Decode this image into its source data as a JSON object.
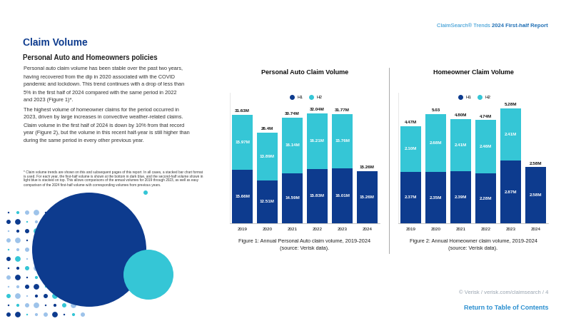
{
  "header": {
    "series_name": "ClaimSearch® Trends",
    "report": "2024 First-half Report"
  },
  "title": "Claim Volume",
  "subtitle": "Personal Auto and Homeowners policies",
  "paragraphs": [
    [
      "Personal auto claim volume has been stable over the past two years,",
      "having recovered from the dip in 2020 associated with the COVID",
      "pandemic and lockdown. This trend continues with a drop of less than",
      "5% in the first half of 2024 compared with the same period in 2022",
      "and 2023 (Figure 1)*."
    ],
    [
      "The highest volume of homeowner claims for the period occurred in",
      "2023, driven by large increases in convective weather-related claims.",
      "Claim volume in the first half of 2024 is down by 10% from that record",
      "year (Figure 2), but the volume in this recent half-year is still higher than",
      "during the same period in every other previous year."
    ]
  ],
  "footnote": [
    "* Claim volume trends are shown on this and subsequent pages of this report. In all cases, a stacked bar chart format",
    "is used. For each year, the first-half volume is shown at the bottom in dark blue, and the second-half volume shown in",
    "light blue is stacked on top. This allows comparisons of the annual volumes for 2019 through 2023, as well as easy",
    "comparison of the 2024 first-half volume with corresponding volumes from previous years."
  ],
  "footer": {
    "credit": "© Verisk / verisk.com/claimsearch / 4",
    "link": "Return to Table of Contents"
  },
  "chart_data": [
    {
      "type": "bar",
      "title": "Personal Auto Claim Volume",
      "categories": [
        "2019",
        "2020",
        "2021",
        "2022",
        "2023",
        "2024"
      ],
      "series": [
        {
          "name": "H1",
          "color": "#0d3b8e",
          "values": [
            15.66,
            12.51,
            14.59,
            15.83,
            16.01,
            15.26
          ],
          "value_labels": [
            "15.66M",
            "12.51M",
            "14.59M",
            "15.83M",
            "16.01M",
            "15.26M"
          ]
        },
        {
          "name": "H2",
          "color": "#35c6d6",
          "values": [
            15.97,
            13.89,
            16.14,
            16.21,
            15.76,
            null
          ],
          "value_labels": [
            "15.97M",
            "13.89M",
            "16.14M",
            "16.21M",
            "15.76M",
            null
          ]
        }
      ],
      "totals": [
        31.63,
        26.4,
        30.74,
        32.04,
        31.77,
        15.26
      ],
      "total_labels": [
        "31.63M",
        "26.4M",
        "30.74M",
        "32.04M",
        "31.77M",
        "15.26M"
      ],
      "stacked": true,
      "data_labels": true,
      "legend": "upper center",
      "tick_labels": "x",
      "ylim": [
        0,
        38
      ],
      "caption": [
        "Figure 1: Annual Personal Auto claim volume, 2019-2024",
        "(source: Verisk data)."
      ]
    },
    {
      "type": "bar",
      "title": "Homeowner Claim Volume",
      "categories": [
        "2019",
        "2020",
        "2021",
        "2022",
        "2023",
        "2024"
      ],
      "series": [
        {
          "name": "H1",
          "color": "#0d3b8e",
          "values": [
            2.37,
            2.35,
            2.39,
            2.28,
            2.87,
            2.58
          ],
          "value_labels": [
            "2.37M",
            "2.35M",
            "2.39M",
            "2.28M",
            "2.87M",
            "2.58M"
          ]
        },
        {
          "name": "H2",
          "color": "#35c6d6",
          "values": [
            2.1,
            2.68,
            2.41,
            2.46,
            2.41,
            null
          ],
          "value_labels": [
            "2.10M",
            "2.68M",
            "2.41M",
            "2.46M",
            "2.41M",
            null
          ]
        }
      ],
      "totals": [
        4.47,
        5.03,
        4.8,
        4.74,
        5.28,
        2.58
      ],
      "total_labels": [
        "4.47M",
        "5.03",
        "4.80M",
        "4.74M",
        "5.28M",
        "2.58M"
      ],
      "stacked": true,
      "data_labels": true,
      "legend": "upper center",
      "tick_labels": "x",
      "ylim": [
        0,
        6
      ],
      "caption": [
        "Figure 2: Annual Homeowner claim volume, 2019-2024",
        "(source: Verisk data)."
      ]
    }
  ]
}
